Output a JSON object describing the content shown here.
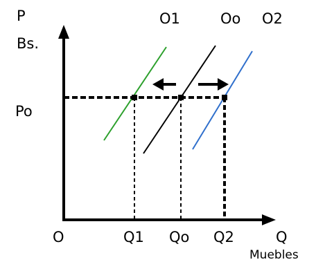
{
  "axes": {
    "y_label": "P",
    "y_unit": "Bs.",
    "x_label": "Q",
    "x_unit": "Muebles",
    "origin": "O"
  },
  "price_label": "Po",
  "quantity_labels": [
    "Q1",
    "Qo",
    "Q2"
  ],
  "curve_labels": [
    "O1",
    "Oo",
    "O2"
  ],
  "colors": {
    "o1": "#2ca02c",
    "oo": "#000000",
    "o2": "#2f6fcc"
  }
}
